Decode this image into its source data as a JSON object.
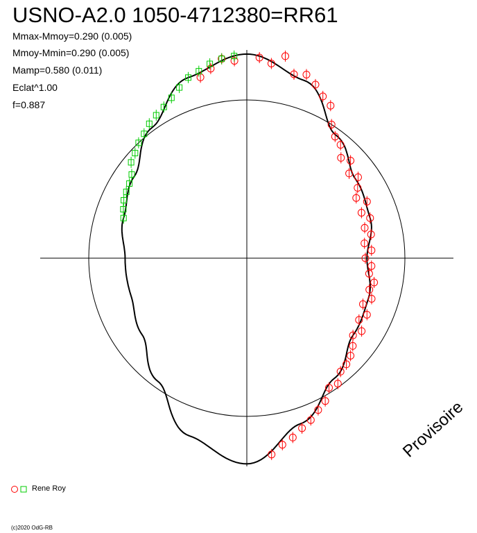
{
  "header": {
    "title": "USNO-A2.0 1050-4712380=RR61",
    "stats": [
      "Mmax-Mmoy=0.290 (0.005)",
      "Mmoy-Mmin=0.290 (0.005)",
      "Mamp=0.580 (0.011)",
      "Eclat^1.00",
      "f=0.887"
    ]
  },
  "watermark": "Provisoire",
  "legend": {
    "label": "Rene Roy"
  },
  "footer": {
    "copyright": "(c)2020 OdG-RB"
  },
  "colors": {
    "axis": "#000000",
    "curve": "#000000",
    "circle_series": "#ff0000",
    "square_series": "#00cc00"
  },
  "chart_data": {
    "type": "scatter",
    "projection": "polar phase diagram",
    "reference_circle": "magnitude mean",
    "curve": {
      "phase": [
        0,
        0.05,
        0.1,
        0.15,
        0.2,
        0.25,
        0.3,
        0.35,
        0.4,
        0.45,
        0.5,
        0.55,
        0.6,
        0.65,
        0.7,
        0.75,
        0.8,
        0.85,
        0.9,
        0.95,
        1.0
      ],
      "radius": [
        1.29,
        1.18,
        0.96,
        0.85,
        0.82,
        0.76,
        0.81,
        0.83,
        0.94,
        1.1,
        1.3,
        1.18,
        0.96,
        0.82,
        0.77,
        0.77,
        0.82,
        0.88,
        1.02,
        1.2,
        1.29
      ]
    },
    "series": [
      {
        "name": "Rene Roy",
        "marker": "circle",
        "color": "#ff0000",
        "phase": [
          0.01,
          0.02,
          0.03,
          0.04,
          0.05,
          0.06,
          0.07,
          0.08,
          0.09,
          0.1,
          0.11,
          0.12,
          0.13,
          0.14,
          0.15,
          0.16,
          0.17,
          0.18,
          0.19,
          0.2,
          0.21,
          0.22,
          0.23,
          0.24,
          0.25,
          0.26,
          0.27,
          0.28,
          0.29,
          0.3,
          0.31,
          0.32,
          0.33,
          0.34,
          0.35,
          0.36,
          0.37,
          0.38,
          0.39,
          0.4,
          0.41,
          0.42,
          0.43,
          0.44,
          0.45,
          0.46,
          0.47,
          0.48,
          0.96,
          0.97,
          0.98,
          0.99
        ],
        "radius": [
          1.27,
          1.24,
          1.3,
          1.2,
          1.22,
          1.18,
          1.13,
          1.1,
          1.0,
          0.95,
          0.93,
          0.87,
          0.9,
          0.84,
          0.87,
          0.83,
          0.79,
          0.84,
          0.78,
          0.82,
          0.77,
          0.8,
          0.75,
          0.79,
          0.75,
          0.79,
          0.78,
          0.82,
          0.8,
          0.83,
          0.79,
          0.84,
          0.81,
          0.86,
          0.83,
          0.87,
          0.9,
          0.92,
          0.93,
          0.98,
          0.97,
          1.03,
          1.06,
          1.1,
          1.13,
          1.17,
          1.2,
          1.25,
          1.18,
          1.22,
          1.27,
          1.25
        ]
      },
      {
        "name": "",
        "marker": "square",
        "color": "#00cc00",
        "phase": [
          0.8,
          0.81,
          0.82,
          0.83,
          0.84,
          0.85,
          0.86,
          0.87,
          0.88,
          0.89,
          0.9,
          0.91,
          0.92,
          0.93,
          0.94,
          0.95,
          0.96,
          0.97,
          0.98,
          0.99
        ],
        "radius": [
          0.82,
          0.84,
          0.86,
          0.87,
          0.88,
          0.9,
          0.95,
          0.97,
          1.0,
          1.02,
          1.05,
          1.07,
          1.09,
          1.12,
          1.16,
          1.2,
          1.22,
          1.25,
          1.27,
          1.28
        ]
      }
    ]
  }
}
